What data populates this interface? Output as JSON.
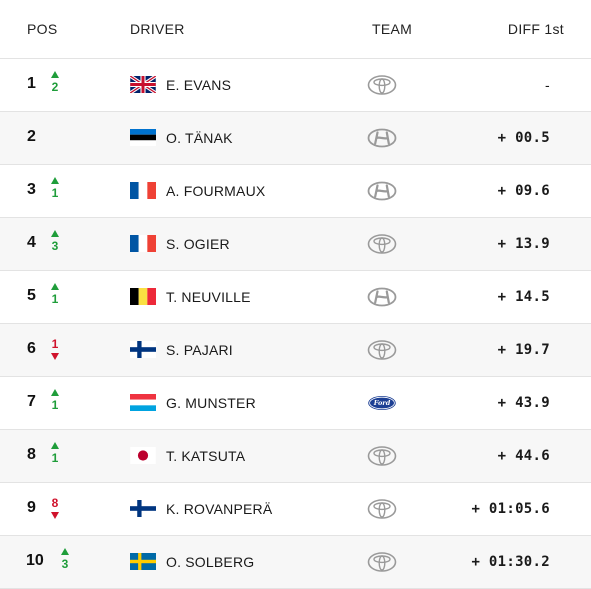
{
  "header": {
    "pos": "POS",
    "driver": "DRIVER",
    "team": "TEAM",
    "diff": "DIFF 1st"
  },
  "colors": {
    "up": "#1f9d3a",
    "down": "#d0122c",
    "ford": "#1c3f94",
    "logo": "#9a9a9a"
  },
  "rows": [
    {
      "pos": "1",
      "dir": "up",
      "change": "2",
      "flag": "gb",
      "driver": "E. EVANS",
      "team": "toyota",
      "diff": "-"
    },
    {
      "pos": "2",
      "dir": "none",
      "change": "",
      "flag": "ee",
      "driver": "O. TÄNAK",
      "team": "hyundai",
      "diff": "+ 00.5"
    },
    {
      "pos": "3",
      "dir": "up",
      "change": "1",
      "flag": "fr",
      "driver": "A. FOURMAUX",
      "team": "hyundai",
      "diff": "+ 09.6"
    },
    {
      "pos": "4",
      "dir": "up",
      "change": "3",
      "flag": "fr",
      "driver": "S. OGIER",
      "team": "toyota",
      "diff": "+ 13.9"
    },
    {
      "pos": "5",
      "dir": "up",
      "change": "1",
      "flag": "be",
      "driver": "T. NEUVILLE",
      "team": "hyundai",
      "diff": "+ 14.5"
    },
    {
      "pos": "6",
      "dir": "down",
      "change": "1",
      "flag": "fi",
      "driver": "S. PAJARI",
      "team": "toyota",
      "diff": "+ 19.7"
    },
    {
      "pos": "7",
      "dir": "up",
      "change": "1",
      "flag": "lu",
      "driver": "G. MUNSTER",
      "team": "ford",
      "diff": "+ 43.9"
    },
    {
      "pos": "8",
      "dir": "up",
      "change": "1",
      "flag": "jp",
      "driver": "T. KATSUTA",
      "team": "toyota",
      "diff": "+ 44.6"
    },
    {
      "pos": "9",
      "dir": "down",
      "change": "8",
      "flag": "fi",
      "driver": "K. ROVANPERÄ",
      "team": "toyota",
      "diff": "+ 01:05.6"
    },
    {
      "pos": "10",
      "dir": "up",
      "change": "3",
      "flag": "se",
      "driver": "O. SOLBERG",
      "team": "toyota",
      "diff": "+ 01:30.2"
    }
  ]
}
